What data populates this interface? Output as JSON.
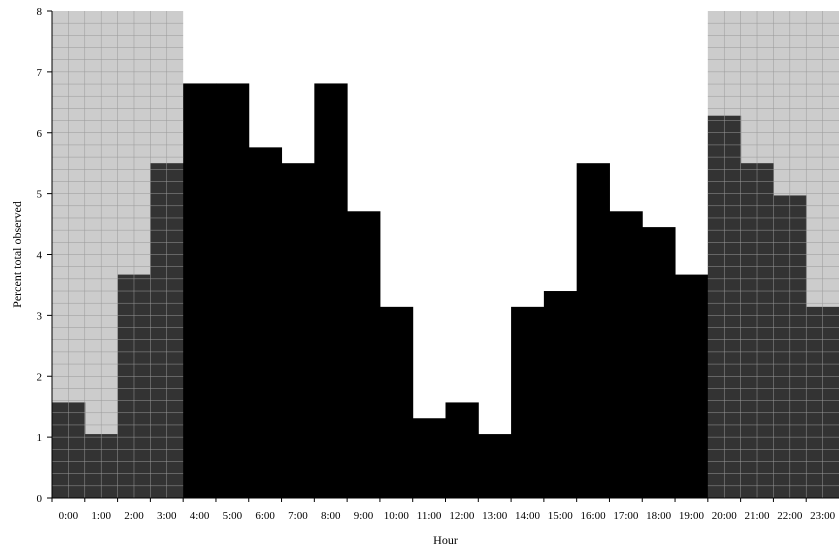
{
  "chart_data": {
    "type": "bar",
    "xlabel": "Hour",
    "ylabel": "Percent total observed",
    "ylim": [
      0,
      8
    ],
    "yticks": [
      0,
      1,
      2,
      3,
      4,
      5,
      6,
      7,
      8
    ],
    "grid": true,
    "categories": [
      "0:00",
      "1:00",
      "2:00",
      "3:00",
      "4:00",
      "5:00",
      "6:00",
      "7:00",
      "8:00",
      "9:00",
      "10:00",
      "11:00",
      "12:00",
      "13:00",
      "14:00",
      "15:00",
      "16:00",
      "17:00",
      "18:00",
      "19:00",
      "20:00",
      "21:00",
      "22:00",
      "23:00"
    ],
    "values": [
      1.57,
      1.05,
      3.67,
      5.5,
      6.81,
      6.81,
      5.76,
      5.5,
      6.81,
      4.71,
      3.14,
      1.31,
      1.57,
      1.05,
      3.14,
      3.4,
      5.5,
      4.71,
      4.45,
      3.67,
      6.28,
      5.5,
      4.97,
      3.14
    ],
    "shaded_hours": [
      "0:00",
      "1:00",
      "2:00",
      "3:00",
      "20:00",
      "21:00",
      "22:00",
      "23:00"
    ],
    "colors": {
      "night_background": "#cccccc",
      "night_bar": "#333333",
      "day_bar": "#000000",
      "grid": "#999999"
    }
  }
}
